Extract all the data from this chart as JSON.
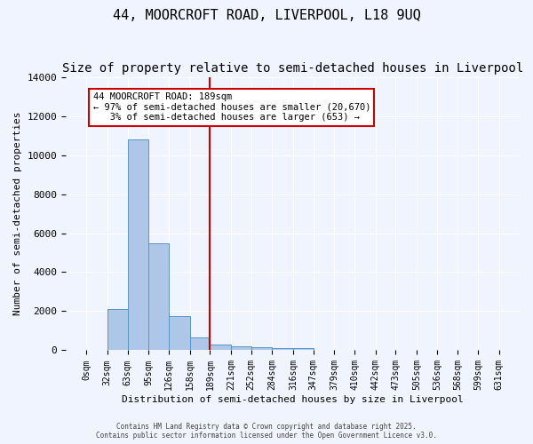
{
  "title": "44, MOORCROFT ROAD, LIVERPOOL, L18 9UQ",
  "subtitle": "Size of property relative to semi-detached houses in Liverpool",
  "xlabel": "Distribution of semi-detached houses by size in Liverpool",
  "ylabel": "Number of semi-detached properties",
  "bin_labels": [
    "0sqm",
    "32sqm",
    "63sqm",
    "95sqm",
    "126sqm",
    "158sqm",
    "189sqm",
    "221sqm",
    "252sqm",
    "284sqm",
    "316sqm",
    "347sqm",
    "379sqm",
    "410sqm",
    "442sqm",
    "473sqm",
    "505sqm",
    "536sqm",
    "568sqm",
    "599sqm",
    "631sqm"
  ],
  "bin_edges": [
    0,
    32,
    63,
    95,
    126,
    158,
    189,
    221,
    252,
    284,
    316,
    347,
    379,
    410,
    442,
    473,
    505,
    536,
    568,
    599,
    631
  ],
  "bar_heights": [
    0,
    2100,
    10800,
    5500,
    1750,
    650,
    300,
    200,
    150,
    100,
    100,
    0,
    0,
    0,
    0,
    0,
    0,
    0,
    0,
    0
  ],
  "bar_color": "#aec6e8",
  "bar_edge_color": "#5596c8",
  "property_line_x": 189,
  "property_line_color": "#cc0000",
  "ylim": [
    0,
    14000
  ],
  "annotation_text": "44 MOORCROFT ROAD: 189sqm\n← 97% of semi-detached houses are smaller (20,670)\n   3% of semi-detached houses are larger (653) →",
  "annotation_box_color": "#ffffff",
  "annotation_box_edge_color": "#cc0000",
  "background_color": "#f0f4ff",
  "grid_color": "#ffffff",
  "footer_line1": "Contains HM Land Registry data © Crown copyright and database right 2025.",
  "footer_line2": "Contains public sector information licensed under the Open Government Licence v3.0.",
  "title_fontsize": 11,
  "subtitle_fontsize": 10
}
